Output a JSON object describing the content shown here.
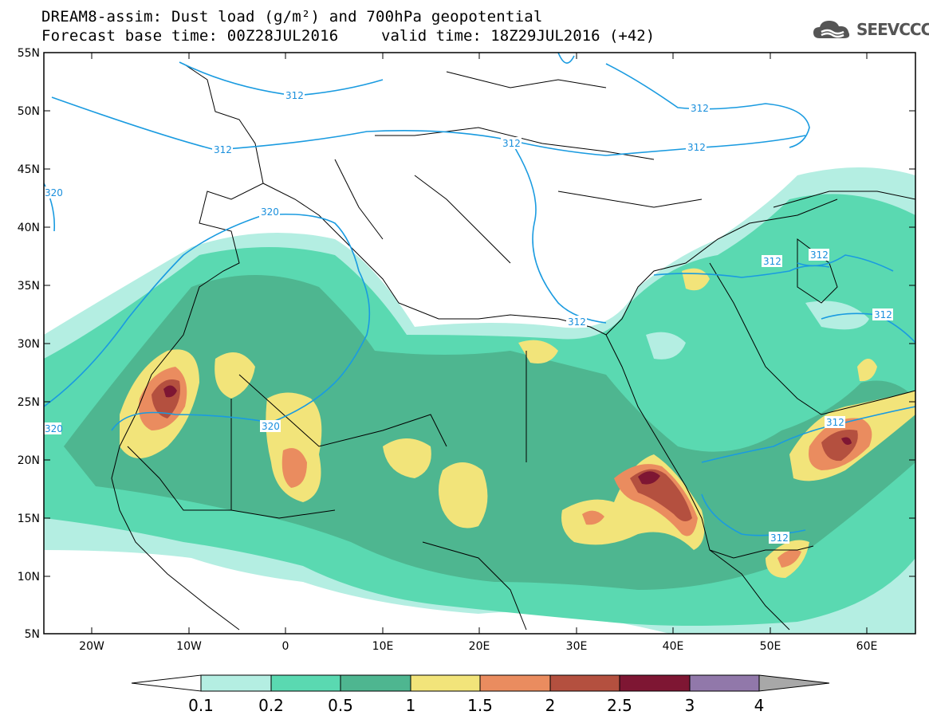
{
  "header": {
    "title_line1": "DREAM8-assim: Dust load (g/m²) and 700hPa geopotential",
    "title_line2": "Forecast base time: 00Z28JUL2016",
    "valid_time": "valid time: 18Z29JUL2016 (+42)",
    "logo_text": "SEEVCCC",
    "logo_icon": "cloud-icon"
  },
  "axes": {
    "lat_labels": [
      "55N",
      "50N",
      "45N",
      "40N",
      "35N",
      "30N",
      "25N",
      "20N",
      "15N",
      "10N",
      "5N"
    ],
    "lon_labels": [
      "20W",
      "10W",
      "0",
      "10E",
      "20E",
      "30E",
      "40E",
      "50E",
      "60E"
    ]
  },
  "contours": {
    "labels": [
      "312",
      "312",
      "312",
      "312",
      "312",
      "312",
      "312",
      "312",
      "312",
      "320",
      "320",
      "320",
      "320",
      "312",
      "312"
    ]
  },
  "colorbar": {
    "ticks": [
      "0.1",
      "0.2",
      "0.5",
      "1",
      "1.5",
      "2",
      "2.5",
      "3",
      "4"
    ],
    "colors": [
      "#ffffff",
      "#b4eee2",
      "#5ad9b1",
      "#4eb690",
      "#f2e47a",
      "#ea8c5f",
      "#b4503f",
      "#7e1633",
      "#9178aa",
      "#a8a8a8"
    ]
  }
}
